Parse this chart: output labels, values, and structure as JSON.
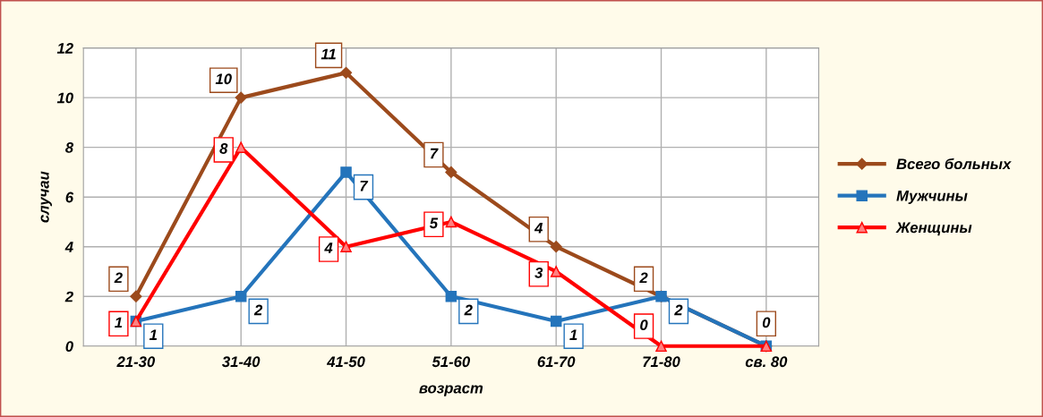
{
  "chart_data": {
    "type": "line",
    "xlabel": "возраст",
    "ylabel": "случаи",
    "categories": [
      "21-30",
      "31-40",
      "41-50",
      "51-60",
      "61-70",
      "71-80",
      "св. 80"
    ],
    "series": [
      {
        "name": "Всего больных",
        "color": "#9c4a1c",
        "marker": "diamond",
        "values": [
          2,
          10,
          11,
          7,
          4,
          2,
          0
        ],
        "value_labels": [
          "2",
          "10",
          "11",
          "7",
          "4",
          "2",
          "0"
        ]
      },
      {
        "name": "Мужчины",
        "color": "#2474bb",
        "marker": "square",
        "values": [
          1,
          2,
          7,
          2,
          1,
          2,
          0
        ],
        "value_labels": [
          "1",
          "2",
          "7",
          "2",
          "1",
          "2",
          null
        ]
      },
      {
        "name": "Женщины",
        "color": "#ff0000",
        "marker": "triangle",
        "values": [
          1,
          8,
          4,
          5,
          3,
          0,
          0
        ],
        "value_labels": [
          "1",
          "8",
          "4",
          "5",
          "3",
          "0",
          null
        ]
      }
    ],
    "ylim": [
      0,
      12
    ],
    "yticks": [
      0,
      2,
      4,
      6,
      8,
      10,
      12
    ],
    "grid": true,
    "legend": "right",
    "line_style": "solid"
  }
}
